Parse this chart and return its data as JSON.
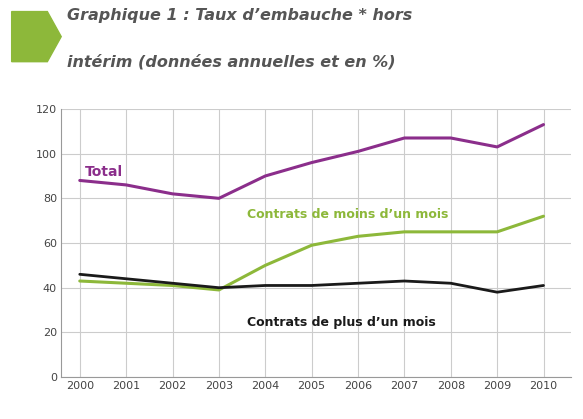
{
  "years": [
    2000,
    2001,
    2002,
    2003,
    2004,
    2005,
    2006,
    2007,
    2008,
    2009,
    2010
  ],
  "total": [
    88,
    86,
    82,
    80,
    90,
    96,
    101,
    107,
    107,
    103,
    113
  ],
  "moins_un_mois": [
    43,
    42,
    41,
    39,
    50,
    59,
    63,
    65,
    65,
    65,
    72
  ],
  "plus_un_mois": [
    46,
    44,
    42,
    40,
    41,
    41,
    42,
    43,
    42,
    38,
    41
  ],
  "color_total": "#8B2E8B",
  "color_moins": "#8DB83A",
  "color_plus": "#1a1a1a",
  "title_line1": "Graphique 1 : Taux d’embauche * hors",
  "title_line2": "intérim (données annuelles et en %)",
  "label_total": "Total",
  "label_moins": "Contrats de moins d’un mois",
  "label_plus": "Contrats de plus d’un mois",
  "ylim": [
    0,
    120
  ],
  "yticks": [
    0,
    20,
    40,
    60,
    80,
    100,
    120
  ],
  "bg_color": "#ffffff",
  "grid_color": "#cccccc",
  "arrow_color": "#8DB83A",
  "title_color": "#555555"
}
